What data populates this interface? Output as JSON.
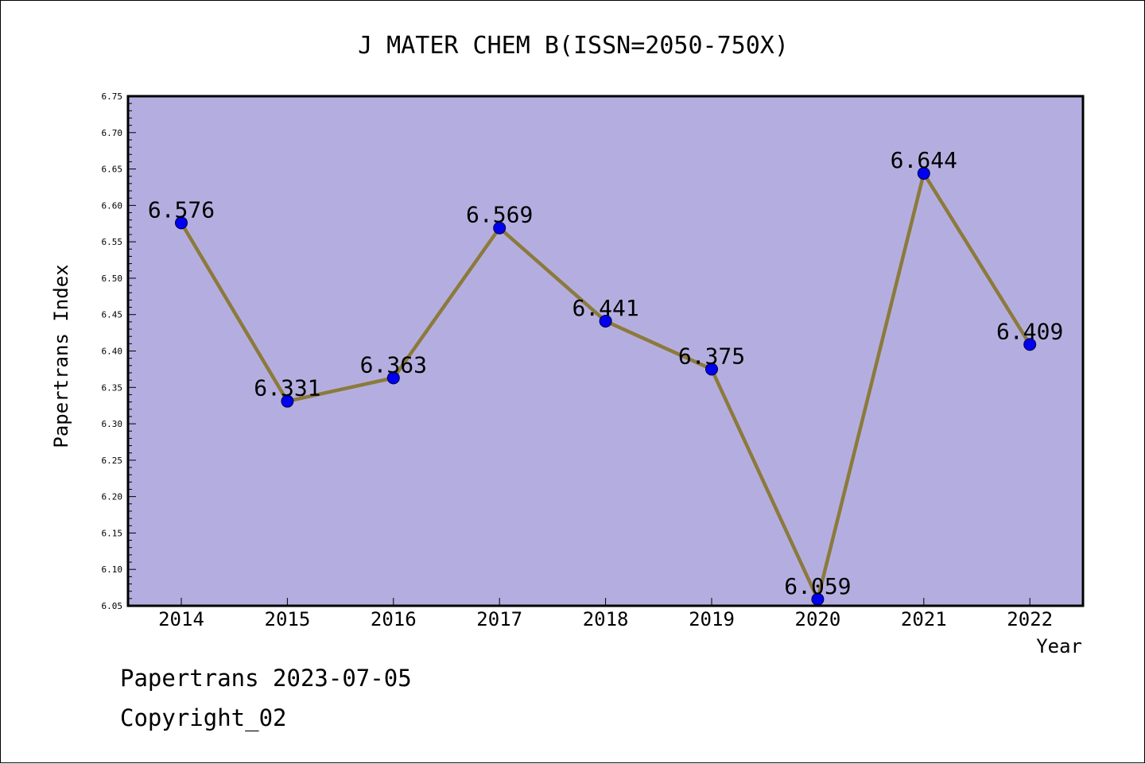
{
  "chart_data": {
    "type": "line",
    "title": "J MATER CHEM B(ISSN=2050-750X)",
    "xlabel": "Year",
    "ylabel": "Papertrans Index",
    "categories": [
      "2014",
      "2015",
      "2016",
      "2017",
      "2018",
      "2019",
      "2020",
      "2021",
      "2022"
    ],
    "values": [
      6.576,
      6.331,
      6.363,
      6.569,
      6.441,
      6.375,
      6.059,
      6.644,
      6.409
    ],
    "data_labels": [
      "6.576",
      "6.331",
      "6.363",
      "6.569",
      "6.441",
      "6.375",
      "6.059",
      "6.644",
      "6.409"
    ],
    "ylim": [
      6.05,
      6.75
    ],
    "yticks": [
      "6.05",
      "6.10",
      "6.15",
      "6.20",
      "6.25",
      "6.30",
      "6.35",
      "6.40",
      "6.45",
      "6.50",
      "6.55",
      "6.60",
      "6.65",
      "6.70",
      "6.75"
    ],
    "grid": false,
    "colors": {
      "plot_background": "#b4aee0",
      "line": "#8c7a3c",
      "marker": "#0000ee"
    }
  },
  "footer": {
    "line1": "Papertrans 2023-07-05",
    "line2": "Copyright_02"
  }
}
